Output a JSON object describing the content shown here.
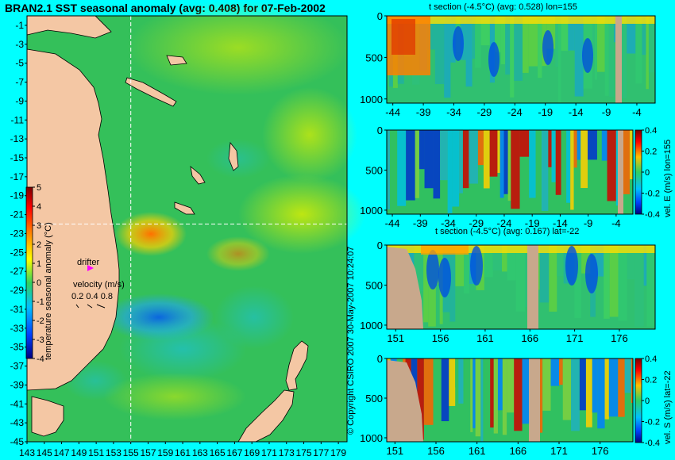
{
  "title": "BRAN2.1 SST seasonal anomaly (avg: 0.408) for 07-Feb-2002",
  "copyright": "© Copyright CSIRO 2007   30-May-2007 10:24:07",
  "colors": {
    "background": "#00ffff",
    "land": "#f4c7a4",
    "section_land": "#c8a88c",
    "ocean_base": "#30c060",
    "marker": "#ff00ff",
    "crosshair": "#ffffff"
  },
  "chart_data": [
    {
      "type": "heatmap",
      "name": "map",
      "x_ticks": [
        "143",
        "145",
        "147",
        "149",
        "151",
        "153",
        "155",
        "157",
        "159",
        "161",
        "163",
        "165",
        "167",
        "169",
        "171",
        "173",
        "175",
        "177",
        "179"
      ],
      "y_ticks": [
        "-1",
        "-3",
        "-5",
        "-7",
        "-9",
        "-11",
        "-13",
        "-15",
        "-17",
        "-19",
        "-21",
        "-23",
        "-25",
        "-27",
        "-29",
        "-31",
        "-33",
        "-35",
        "-37",
        "-39",
        "-41",
        "-43",
        "-45"
      ],
      "xlim": [
        143,
        180
      ],
      "ylim": [
        -45,
        0
      ],
      "crosshair": {
        "lon": 155,
        "lat": -22
      },
      "colorbar": {
        "label": "temperature seasonal anomaly (°C)",
        "ticks": [
          "5",
          "4",
          "3",
          "2",
          "1",
          "0",
          "-1",
          "-2",
          "-3",
          "-4"
        ],
        "range": [
          -4,
          5
        ]
      },
      "annotations": {
        "drifter": "drifter",
        "velocity_label": "velocity (m/s)",
        "velocity_scale": "0.2 0.4 0.8"
      }
    },
    {
      "type": "heatmap",
      "name": "t-section-lon",
      "title": "t section (-4.5°C) (avg: 0.528) lon=155",
      "x_ticks": [
        "-44",
        "-39",
        "-34",
        "-29",
        "-24",
        "-19",
        "-14",
        "-9",
        "-4"
      ],
      "y_ticks": [
        "0",
        "500",
        "1000"
      ],
      "xlim": [
        -45,
        -1
      ],
      "ylim": [
        1050,
        0
      ]
    },
    {
      "type": "heatmap",
      "name": "vel-e-section",
      "x_ticks": [
        "-44",
        "-39",
        "-34",
        "-29",
        "-24",
        "-19",
        "-14",
        "-9",
        "-4"
      ],
      "y_ticks": [
        "0",
        "500",
        "1000"
      ],
      "xlim": [
        -45,
        -1
      ],
      "ylim": [
        1050,
        0
      ],
      "colorbar": {
        "label": "vel. E (m/s) lon=155",
        "ticks": [
          "0.4",
          "0.2",
          "0",
          "-0.2",
          "-0.4"
        ],
        "range": [
          -0.4,
          0.4
        ]
      }
    },
    {
      "type": "heatmap",
      "name": "t-section-lat",
      "title": "t section (-4.5°C) (avg: 0.167) lat=-22",
      "x_ticks": [
        "151",
        "156",
        "161",
        "166",
        "171",
        "176"
      ],
      "y_ticks": [
        "0",
        "500",
        "1000"
      ],
      "xlim": [
        150,
        180
      ],
      "ylim": [
        1050,
        0
      ]
    },
    {
      "type": "heatmap",
      "name": "vel-s-section",
      "x_ticks": [
        "151",
        "156",
        "161",
        "166",
        "171",
        "176"
      ],
      "y_ticks": [
        "0",
        "500",
        "1000"
      ],
      "xlim": [
        150,
        180
      ],
      "ylim": [
        1050,
        0
      ],
      "colorbar": {
        "label": "vel. S (m/s) lat=-22",
        "ticks": [
          "0.4",
          "0.2",
          "0",
          "-0.2",
          "-0.4"
        ],
        "range": [
          -0.4,
          0.4
        ]
      }
    }
  ]
}
